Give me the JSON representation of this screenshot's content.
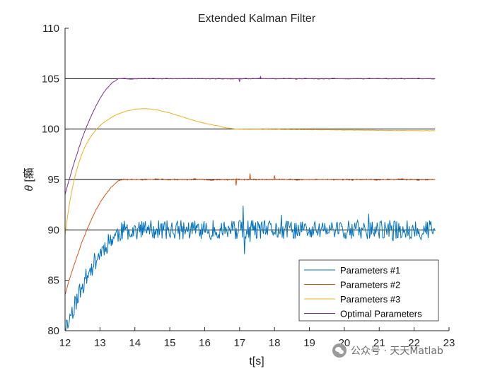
{
  "chart_data": {
    "type": "line",
    "title": "Extended Kalman Filter",
    "xlabel": "t[s]",
    "ylabel_symbol": "θ",
    "ylabel_unit": " [癩",
    "xlim": [
      12,
      23
    ],
    "ylim": [
      80,
      110
    ],
    "x_ticks": [
      12,
      13,
      14,
      15,
      16,
      17,
      18,
      19,
      20,
      21,
      22,
      23
    ],
    "y_ticks": [
      80,
      85,
      90,
      95,
      100,
      105,
      110
    ],
    "grid": false,
    "legend_position": "bottom-right",
    "reference_lines": [
      90,
      95,
      100,
      105
    ],
    "reference_xrange": [
      12,
      22.6
    ],
    "series": [
      {
        "name": "Parameters #1",
        "color": "#0072BD",
        "start": 80.0,
        "target": 90,
        "tau": 0.55,
        "settle": 13.8,
        "noise": 0.55,
        "overshoot": 0,
        "seed": 11,
        "spikes": [
          [
            17.1,
            92.4
          ],
          [
            17.15,
            87.6
          ],
          [
            17.3,
            88.8
          ],
          [
            18.2,
            91.5
          ],
          [
            20.7,
            91.6
          ],
          [
            21.4,
            88.9
          ]
        ]
      },
      {
        "name": "Parameters #2",
        "color": "#D95319",
        "start": 83.6,
        "target": 95,
        "tau": 0.45,
        "settle": 13.7,
        "noise": 0.12,
        "overshoot": 0,
        "seed": 23,
        "spikes": [
          [
            16.9,
            94.4
          ],
          [
            17.3,
            95.6
          ],
          [
            18.0,
            95.4
          ]
        ]
      },
      {
        "name": "Parameters #3",
        "color": "#EDB120",
        "start": 89.5,
        "target": 100,
        "tau": 0.38,
        "settle": 0,
        "noise": 0.03,
        "overshoot": 2.05,
        "seed": 37,
        "spikes": []
      },
      {
        "name": "Optimal Parameters",
        "color": "#7E2F8E",
        "start": 93.5,
        "target": 105,
        "tau": 0.32,
        "settle": 13.6,
        "noise": 0.08,
        "overshoot": 0,
        "seed": 51,
        "spikes": [
          [
            17.0,
            104.7
          ],
          [
            17.6,
            105.2
          ]
        ]
      }
    ]
  },
  "watermark": {
    "text": "公众号 · 天天Matlab",
    "icon": "wechat-icon"
  }
}
